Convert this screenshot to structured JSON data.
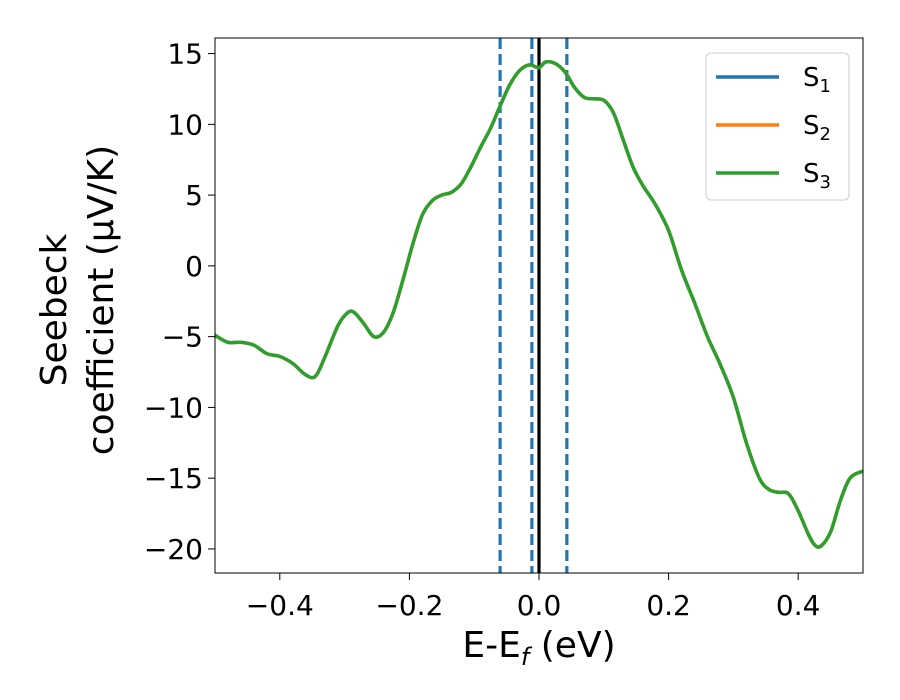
{
  "chart_data": {
    "type": "line",
    "xlabel": {
      "base": "E-E",
      "sub": "f",
      "unit": " (eV)"
    },
    "ylabel": {
      "line1": "Seebeck",
      "line2": "coefficient  (μV/K)"
    },
    "xlim": [
      -0.5,
      0.5
    ],
    "ylim": [
      -21.7,
      16.1
    ],
    "xticks": [
      -0.4,
      -0.2,
      0.0,
      0.2,
      0.4
    ],
    "xtick_labels": [
      "−0.4",
      "−0.2",
      "0.0",
      "0.2",
      "0.4"
    ],
    "yticks": [
      -20,
      -15,
      -10,
      -5,
      0,
      5,
      10,
      15
    ],
    "ytick_labels": [
      "−20",
      "−15",
      "−10",
      "−5",
      "0",
      "5",
      "10",
      "15"
    ],
    "grid": false,
    "legend_position": "top-right",
    "vlines": [
      {
        "x": -0.06,
        "style": "dashed",
        "color": "#1f77b4"
      },
      {
        "x": -0.011,
        "style": "dashed",
        "color": "#1f77b4"
      },
      {
        "x": 0.0,
        "style": "solid",
        "color": "#000000"
      },
      {
        "x": 0.043,
        "style": "dashed",
        "color": "#1f77b4"
      }
    ],
    "x": [
      -0.5,
      -0.48,
      -0.46,
      -0.44,
      -0.42,
      -0.4,
      -0.38,
      -0.36,
      -0.345,
      -0.33,
      -0.31,
      -0.295,
      -0.285,
      -0.27,
      -0.255,
      -0.24,
      -0.225,
      -0.21,
      -0.195,
      -0.18,
      -0.165,
      -0.15,
      -0.135,
      -0.12,
      -0.105,
      -0.09,
      -0.075,
      -0.06,
      -0.045,
      -0.03,
      -0.015,
      0.0,
      0.01,
      0.025,
      0.04,
      0.055,
      0.07,
      0.085,
      0.1,
      0.115,
      0.13,
      0.145,
      0.16,
      0.18,
      0.2,
      0.22,
      0.24,
      0.26,
      0.28,
      0.3,
      0.32,
      0.34,
      0.355,
      0.37,
      0.385,
      0.4,
      0.415,
      0.425,
      0.435,
      0.45,
      0.465,
      0.48,
      0.5
    ],
    "series": [
      {
        "name": "S$_{1}$",
        "label_base": "S",
        "label_sub": "1",
        "color": "#1f77b4",
        "y": [
          -4.9,
          -5.4,
          -5.4,
          -5.6,
          -6.2,
          -6.4,
          -6.9,
          -7.7,
          -7.8,
          -6.4,
          -4.2,
          -3.3,
          -3.3,
          -4.1,
          -5.0,
          -4.7,
          -3.3,
          -1.0,
          1.5,
          3.6,
          4.6,
          5.0,
          5.2,
          5.8,
          7.0,
          8.4,
          9.7,
          11.3,
          12.8,
          13.8,
          14.2,
          14.0,
          14.4,
          14.3,
          13.7,
          12.6,
          11.9,
          11.8,
          11.7,
          10.8,
          8.9,
          7.0,
          5.7,
          4.3,
          2.5,
          -0.3,
          -2.6,
          -5.0,
          -7.0,
          -9.3,
          -12.5,
          -15.0,
          -15.8,
          -16.0,
          -16.1,
          -17.3,
          -18.9,
          -19.7,
          -19.8,
          -18.8,
          -16.6,
          -15.0,
          -14.5
        ]
      },
      {
        "name": "S$_{2}$",
        "label_base": "S",
        "label_sub": "2",
        "color": "#ff7f0e",
        "y": [
          -4.9,
          -5.4,
          -5.4,
          -5.6,
          -6.2,
          -6.4,
          -6.9,
          -7.7,
          -7.8,
          -6.4,
          -4.2,
          -3.3,
          -3.3,
          -4.1,
          -5.0,
          -4.7,
          -3.3,
          -1.0,
          1.5,
          3.6,
          4.6,
          5.0,
          5.2,
          5.8,
          7.0,
          8.4,
          9.7,
          11.3,
          12.8,
          13.8,
          14.2,
          14.0,
          14.4,
          14.3,
          13.7,
          12.6,
          11.9,
          11.8,
          11.7,
          10.8,
          8.9,
          7.0,
          5.7,
          4.3,
          2.5,
          -0.3,
          -2.6,
          -5.0,
          -7.0,
          -9.3,
          -12.5,
          -15.0,
          -15.8,
          -16.0,
          -16.1,
          -17.3,
          -18.9,
          -19.7,
          -19.8,
          -18.8,
          -16.6,
          -15.0,
          -14.5
        ]
      },
      {
        "name": "S$_{3}$",
        "label_base": "S",
        "label_sub": "3",
        "color": "#2ca02c",
        "y": [
          -4.9,
          -5.4,
          -5.4,
          -5.6,
          -6.2,
          -6.4,
          -6.9,
          -7.7,
          -7.8,
          -6.4,
          -4.2,
          -3.3,
          -3.3,
          -4.1,
          -5.0,
          -4.7,
          -3.3,
          -1.0,
          1.5,
          3.6,
          4.6,
          5.0,
          5.2,
          5.8,
          7.0,
          8.4,
          9.7,
          11.3,
          12.8,
          13.8,
          14.2,
          14.0,
          14.4,
          14.3,
          13.7,
          12.6,
          11.9,
          11.8,
          11.7,
          10.8,
          8.9,
          7.0,
          5.7,
          4.3,
          2.5,
          -0.3,
          -2.6,
          -5.0,
          -7.0,
          -9.3,
          -12.5,
          -15.0,
          -15.8,
          -16.0,
          -16.1,
          -17.3,
          -18.9,
          -19.7,
          -19.8,
          -18.8,
          -16.6,
          -15.0,
          -14.5
        ]
      }
    ]
  }
}
